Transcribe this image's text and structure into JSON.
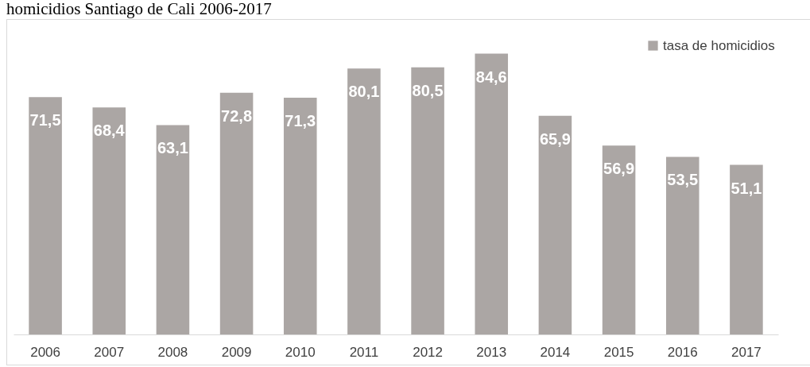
{
  "chart_data": {
    "type": "bar",
    "title": "homicidios Santiago de Cali 2006-2017",
    "categories": [
      "2006",
      "2007",
      "2008",
      "2009",
      "2010",
      "2011",
      "2012",
      "2013",
      "2014",
      "2015",
      "2016",
      "2017"
    ],
    "series": [
      {
        "name": "tasa de homicidios",
        "color": "#aba6a4",
        "values": [
          71.5,
          68.4,
          63.1,
          72.8,
          71.3,
          80.1,
          80.5,
          84.6,
          65.9,
          56.9,
          53.5,
          51.1
        ],
        "value_labels": [
          "71,5",
          "68,4",
          "63,1",
          "72,8",
          "71,3",
          "80,1",
          "80,5",
          "84,6",
          "65,9",
          "56,9",
          "53,5",
          "51,1"
        ]
      }
    ],
    "legend": "top right"
  }
}
